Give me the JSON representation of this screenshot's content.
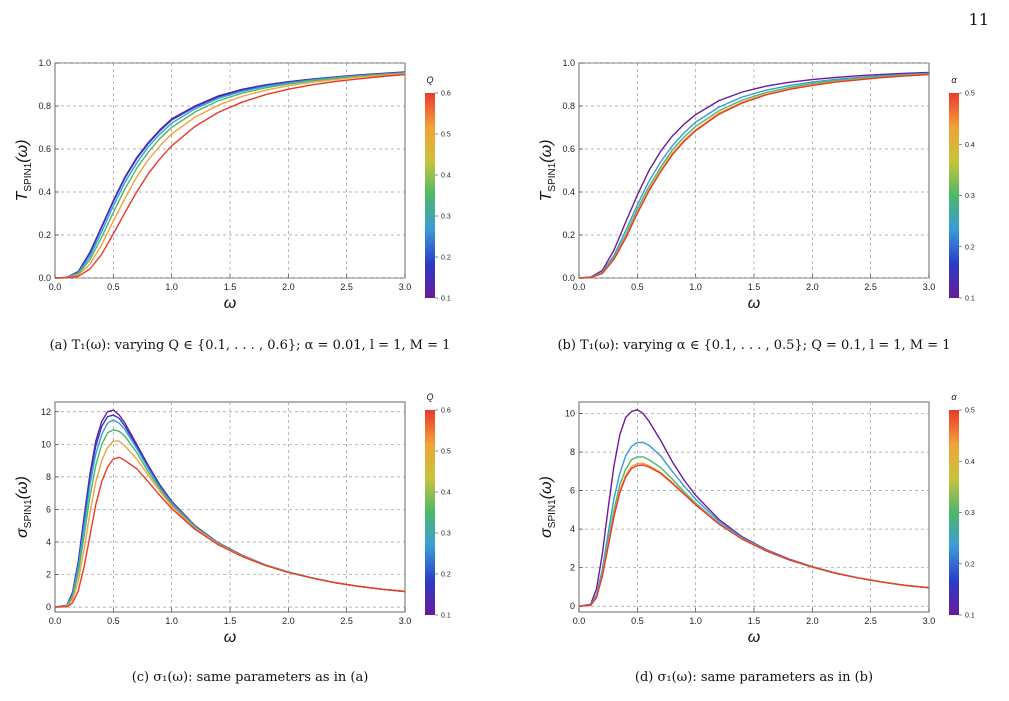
{
  "page_number": "11",
  "colorscale": [
    "#6a1b9a",
    "#2a3cc8",
    "#3a9bd8",
    "#4cb86a",
    "#c8c43a",
    "#f2a23a",
    "#e83a2a"
  ],
  "chart_data": [
    {
      "id": "a",
      "type": "line",
      "caption": "(a) T₁(ω): varying Q ∈ {0.1, . . . , 0.6}; α = 0.01, l = 1, M = 1",
      "xlabel": "ω",
      "ylabel": "T",
      "ylabel_sub": "SPIN1",
      "ylabel_tail": "(ω)",
      "xlim": [
        0,
        3
      ],
      "ylim": [
        0,
        1
      ],
      "xticks": [
        "0.0",
        "0.5",
        "1.0",
        "1.5",
        "2.0",
        "2.5",
        "3.0"
      ],
      "yticks": [
        "0.0",
        "0.2",
        "0.4",
        "0.6",
        "0.8",
        "1.0"
      ],
      "legend": {
        "title": "Q",
        "ticks": [
          "0.1",
          "0.2",
          "0.3",
          "0.4",
          "0.5",
          "0.6"
        ],
        "position": "right"
      },
      "x": [
        0.0,
        0.1,
        0.2,
        0.3,
        0.4,
        0.5,
        0.6,
        0.7,
        0.8,
        0.9,
        1.0,
        1.2,
        1.4,
        1.6,
        1.8,
        2.0,
        2.2,
        2.4,
        2.6,
        2.8,
        3.0
      ],
      "series": [
        {
          "param": 0.1,
          "color": "#6a1b9a",
          "values": [
            0.0,
            0.003,
            0.03,
            0.12,
            0.24,
            0.36,
            0.47,
            0.56,
            0.63,
            0.69,
            0.74,
            0.8,
            0.847,
            0.877,
            0.898,
            0.913,
            0.925,
            0.935,
            0.944,
            0.951,
            0.958
          ]
        },
        {
          "param": 0.2,
          "color": "#2a3cc8",
          "values": [
            0.0,
            0.003,
            0.03,
            0.115,
            0.235,
            0.355,
            0.465,
            0.555,
            0.625,
            0.685,
            0.735,
            0.796,
            0.843,
            0.874,
            0.896,
            0.911,
            0.924,
            0.934,
            0.943,
            0.95,
            0.957
          ]
        },
        {
          "param": 0.3,
          "color": "#3a9bd8",
          "values": [
            0.0,
            0.002,
            0.025,
            0.1,
            0.215,
            0.335,
            0.445,
            0.535,
            0.61,
            0.67,
            0.72,
            0.787,
            0.836,
            0.868,
            0.891,
            0.907,
            0.921,
            0.932,
            0.941,
            0.948,
            0.955
          ]
        },
        {
          "param": 0.4,
          "color": "#4cb86a",
          "values": [
            0.0,
            0.002,
            0.02,
            0.085,
            0.19,
            0.305,
            0.415,
            0.51,
            0.585,
            0.65,
            0.7,
            0.772,
            0.824,
            0.859,
            0.884,
            0.902,
            0.917,
            0.928,
            0.938,
            0.946,
            0.953
          ]
        },
        {
          "param": 0.5,
          "color": "#f2a23a",
          "values": [
            0.0,
            0.001,
            0.014,
            0.065,
            0.155,
            0.265,
            0.37,
            0.47,
            0.55,
            0.615,
            0.67,
            0.748,
            0.804,
            0.844,
            0.873,
            0.894,
            0.91,
            0.923,
            0.934,
            0.943,
            0.95
          ]
        },
        {
          "param": 0.6,
          "color": "#e83a2a",
          "values": [
            0.0,
            0.001,
            0.008,
            0.042,
            0.11,
            0.205,
            0.305,
            0.4,
            0.485,
            0.555,
            0.615,
            0.705,
            0.77,
            0.817,
            0.852,
            0.878,
            0.898,
            0.914,
            0.926,
            0.937,
            0.946
          ]
        }
      ]
    },
    {
      "id": "b",
      "type": "line",
      "caption": "(b) T₁(ω): varying α ∈ {0.1, . . . , 0.5}; Q = 0.1, l = 1, M = 1",
      "xlabel": "ω",
      "ylabel": "T",
      "ylabel_sub": "SPIN1",
      "ylabel_tail": "(ω)",
      "xlim": [
        0,
        3
      ],
      "ylim": [
        0,
        1
      ],
      "xticks": [
        "0.0",
        "0.5",
        "1.0",
        "1.5",
        "2.0",
        "2.5",
        "3.0"
      ],
      "yticks": [
        "0.0",
        "0.2",
        "0.4",
        "0.6",
        "0.8",
        "1.0"
      ],
      "legend": {
        "title": "α",
        "ticks": [
          "0.1",
          "0.2",
          "0.3",
          "0.4",
          "0.5"
        ],
        "position": "right"
      },
      "x": [
        0.0,
        0.1,
        0.2,
        0.3,
        0.4,
        0.5,
        0.6,
        0.7,
        0.8,
        0.9,
        1.0,
        1.2,
        1.4,
        1.6,
        1.8,
        2.0,
        2.2,
        2.4,
        2.6,
        2.8,
        3.0
      ],
      "series": [
        {
          "param": 0.1,
          "color": "#6a1b9a",
          "values": [
            0.0,
            0.004,
            0.035,
            0.13,
            0.26,
            0.385,
            0.5,
            0.59,
            0.66,
            0.715,
            0.76,
            0.825,
            0.865,
            0.892,
            0.91,
            0.923,
            0.933,
            0.941,
            0.947,
            0.952,
            0.956
          ]
        },
        {
          "param": 0.2,
          "color": "#3a9bd8",
          "values": [
            0.0,
            0.003,
            0.028,
            0.105,
            0.22,
            0.34,
            0.45,
            0.54,
            0.615,
            0.675,
            0.725,
            0.795,
            0.842,
            0.873,
            0.895,
            0.911,
            0.924,
            0.933,
            0.941,
            0.947,
            0.952
          ]
        },
        {
          "param": 0.3,
          "color": "#4cb86a",
          "values": [
            0.0,
            0.002,
            0.024,
            0.095,
            0.2,
            0.32,
            0.425,
            0.515,
            0.595,
            0.655,
            0.705,
            0.778,
            0.828,
            0.862,
            0.886,
            0.904,
            0.918,
            0.928,
            0.937,
            0.944,
            0.949
          ]
        },
        {
          "param": 0.4,
          "color": "#f2a23a",
          "values": [
            0.0,
            0.002,
            0.022,
            0.09,
            0.19,
            0.305,
            0.41,
            0.5,
            0.58,
            0.64,
            0.69,
            0.767,
            0.818,
            0.854,
            0.879,
            0.898,
            0.913,
            0.924,
            0.933,
            0.941,
            0.947
          ]
        },
        {
          "param": 0.5,
          "color": "#e83a2a",
          "values": [
            0.0,
            0.002,
            0.021,
            0.087,
            0.185,
            0.3,
            0.405,
            0.495,
            0.573,
            0.635,
            0.685,
            0.762,
            0.814,
            0.851,
            0.877,
            0.896,
            0.911,
            0.922,
            0.932,
            0.94,
            0.946
          ]
        }
      ]
    },
    {
      "id": "c",
      "type": "line",
      "caption": "(c) σ₁(ω): same parameters as in (a)",
      "xlabel": "ω",
      "ylabel": "σ",
      "ylabel_sub": "SPIN1",
      "ylabel_tail": "(ω)",
      "xlim": [
        0,
        3
      ],
      "ylim": [
        -0.3,
        12.6
      ],
      "xticks": [
        "0.0",
        "0.5",
        "1.0",
        "1.5",
        "2.0",
        "2.5",
        "3.0"
      ],
      "yticks": [
        "0",
        "2",
        "4",
        "6",
        "8",
        "10",
        "12"
      ],
      "legend": {
        "title": "Q",
        "ticks": [
          "0.1",
          "0.2",
          "0.3",
          "0.4",
          "0.5",
          "0.6"
        ],
        "position": "right"
      },
      "x": [
        0.0,
        0.1,
        0.15,
        0.2,
        0.25,
        0.3,
        0.35,
        0.4,
        0.45,
        0.5,
        0.55,
        0.6,
        0.7,
        0.8,
        0.9,
        1.0,
        1.2,
        1.4,
        1.6,
        1.8,
        2.0,
        2.2,
        2.4,
        2.6,
        2.8,
        3.0
      ],
      "series": [
        {
          "param": 0.1,
          "color": "#6a1b9a",
          "values": [
            0.0,
            0.1,
            0.9,
            2.8,
            5.6,
            8.2,
            10.2,
            11.4,
            12.0,
            12.1,
            11.8,
            11.3,
            10.0,
            8.7,
            7.5,
            6.5,
            5.0,
            3.95,
            3.2,
            2.6,
            2.15,
            1.8,
            1.5,
            1.28,
            1.1,
            0.96
          ]
        },
        {
          "param": 0.2,
          "color": "#2a3cc8",
          "values": [
            0.0,
            0.1,
            0.85,
            2.7,
            5.4,
            8.0,
            9.9,
            11.1,
            11.7,
            11.8,
            11.6,
            11.1,
            9.9,
            8.6,
            7.45,
            6.45,
            4.98,
            3.93,
            3.18,
            2.6,
            2.15,
            1.8,
            1.5,
            1.28,
            1.1,
            0.96
          ]
        },
        {
          "param": 0.3,
          "color": "#3a9bd8",
          "values": [
            0.0,
            0.08,
            0.75,
            2.5,
            5.0,
            7.5,
            9.4,
            10.6,
            11.3,
            11.5,
            11.3,
            10.9,
            9.75,
            8.5,
            7.35,
            6.4,
            4.95,
            3.92,
            3.17,
            2.6,
            2.15,
            1.8,
            1.5,
            1.28,
            1.1,
            0.96
          ]
        },
        {
          "param": 0.4,
          "color": "#4cb86a",
          "values": [
            0.0,
            0.06,
            0.6,
            2.1,
            4.4,
            6.8,
            8.7,
            10.0,
            10.7,
            10.9,
            10.8,
            10.5,
            9.5,
            8.3,
            7.25,
            6.3,
            4.9,
            3.9,
            3.16,
            2.59,
            2.14,
            1.8,
            1.5,
            1.28,
            1.1,
            0.96
          ]
        },
        {
          "param": 0.5,
          "color": "#f2a23a",
          "values": [
            0.0,
            0.04,
            0.45,
            1.6,
            3.6,
            5.8,
            7.7,
            9.0,
            9.8,
            10.2,
            10.2,
            9.9,
            9.1,
            8.1,
            7.1,
            6.2,
            4.85,
            3.87,
            3.15,
            2.58,
            2.14,
            1.79,
            1.5,
            1.28,
            1.1,
            0.96
          ]
        },
        {
          "param": 0.6,
          "color": "#e83a2a",
          "values": [
            0.0,
            0.02,
            0.25,
            1.0,
            2.5,
            4.4,
            6.3,
            7.7,
            8.6,
            9.1,
            9.2,
            9.0,
            8.5,
            7.7,
            6.85,
            6.05,
            4.78,
            3.83,
            3.12,
            2.57,
            2.13,
            1.79,
            1.5,
            1.28,
            1.1,
            0.96
          ]
        }
      ]
    },
    {
      "id": "d",
      "type": "line",
      "caption": "(d) σ₁(ω): same parameters as in (b)",
      "xlabel": "ω",
      "ylabel": "σ",
      "ylabel_sub": "SPIN1",
      "ylabel_tail": "(ω)",
      "xlim": [
        0,
        3
      ],
      "ylim": [
        -0.3,
        10.6
      ],
      "xticks": [
        "0.0",
        "0.5",
        "1.0",
        "1.5",
        "2.0",
        "2.5",
        "3.0"
      ],
      "yticks": [
        "0",
        "2",
        "4",
        "6",
        "8",
        "10"
      ],
      "legend": {
        "title": "α",
        "ticks": [
          "0.1",
          "0.2",
          "0.3",
          "0.4",
          "0.5"
        ],
        "position": "right"
      },
      "x": [
        0.0,
        0.1,
        0.15,
        0.2,
        0.25,
        0.3,
        0.35,
        0.4,
        0.45,
        0.5,
        0.55,
        0.6,
        0.7,
        0.8,
        0.9,
        1.0,
        1.2,
        1.4,
        1.6,
        1.8,
        2.0,
        2.2,
        2.4,
        2.6,
        2.8,
        3.0
      ],
      "series": [
        {
          "param": 0.1,
          "color": "#6a1b9a",
          "values": [
            0.0,
            0.1,
            0.9,
            2.7,
            5.1,
            7.3,
            8.9,
            9.8,
            10.1,
            10.2,
            10.0,
            9.6,
            8.6,
            7.5,
            6.55,
            5.75,
            4.5,
            3.6,
            2.95,
            2.45,
            2.05,
            1.72,
            1.46,
            1.25,
            1.08,
            0.96
          ]
        },
        {
          "param": 0.2,
          "color": "#3a9bd8",
          "values": [
            0.0,
            0.07,
            0.6,
            1.9,
            3.8,
            5.6,
            6.9,
            7.8,
            8.3,
            8.5,
            8.5,
            8.35,
            7.8,
            7.0,
            6.25,
            5.55,
            4.4,
            3.55,
            2.92,
            2.43,
            2.04,
            1.72,
            1.46,
            1.25,
            1.08,
            0.96
          ]
        },
        {
          "param": 0.3,
          "color": "#4cb86a",
          "values": [
            0.0,
            0.06,
            0.5,
            1.7,
            3.4,
            5.0,
            6.3,
            7.1,
            7.6,
            7.75,
            7.75,
            7.6,
            7.2,
            6.6,
            5.95,
            5.35,
            4.3,
            3.5,
            2.9,
            2.42,
            2.03,
            1.71,
            1.46,
            1.25,
            1.08,
            0.96
          ]
        },
        {
          "param": 0.4,
          "color": "#f2a23a",
          "values": [
            0.0,
            0.05,
            0.46,
            1.6,
            3.2,
            4.75,
            6.0,
            6.8,
            7.25,
            7.4,
            7.42,
            7.3,
            6.95,
            6.42,
            5.85,
            5.28,
            4.27,
            3.49,
            2.89,
            2.41,
            2.03,
            1.71,
            1.46,
            1.25,
            1.08,
            0.96
          ]
        },
        {
          "param": 0.5,
          "color": "#e83a2a",
          "values": [
            0.0,
            0.05,
            0.44,
            1.55,
            3.1,
            4.65,
            5.9,
            6.7,
            7.15,
            7.3,
            7.33,
            7.22,
            6.9,
            6.38,
            5.82,
            5.26,
            4.26,
            3.48,
            2.88,
            2.41,
            2.03,
            1.71,
            1.46,
            1.25,
            1.08,
            0.96
          ]
        }
      ]
    }
  ]
}
